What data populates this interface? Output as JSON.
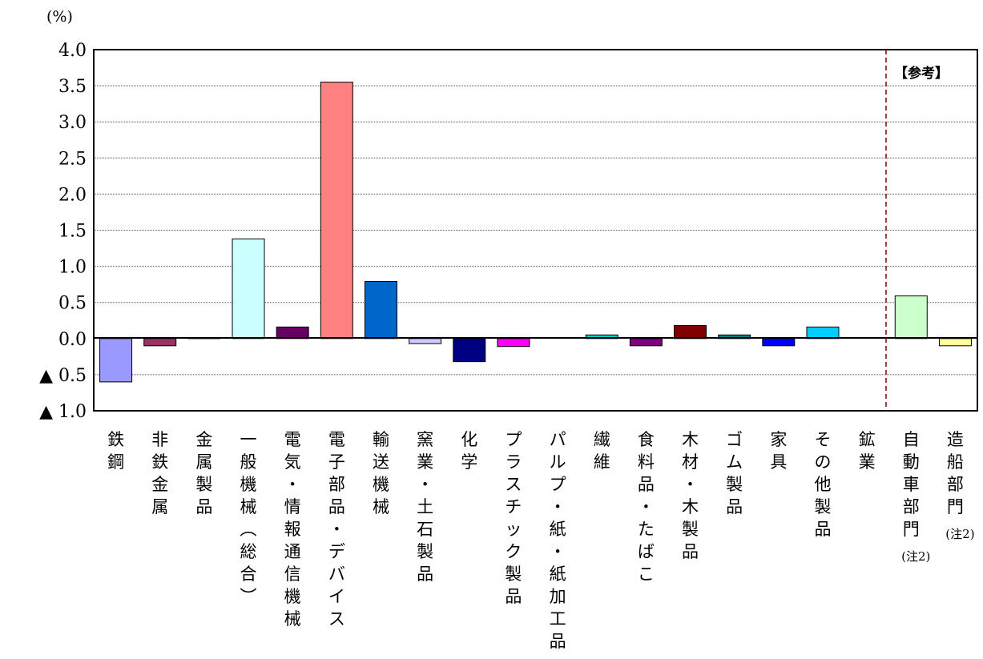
{
  "chart_data": {
    "type": "bar",
    "unit_label": "(%)",
    "ylim": [
      -1.0,
      4.0
    ],
    "yticks": [
      {
        "value": 4.0,
        "label": "4.0"
      },
      {
        "value": 3.5,
        "label": "3.5"
      },
      {
        "value": 3.0,
        "label": "3.0"
      },
      {
        "value": 2.5,
        "label": "2.5"
      },
      {
        "value": 2.0,
        "label": "2.0"
      },
      {
        "value": 1.5,
        "label": "1.5"
      },
      {
        "value": 1.0,
        "label": "1.0"
      },
      {
        "value": 0.5,
        "label": "0.5"
      },
      {
        "value": 0.0,
        "label": "0.0"
      },
      {
        "value": -0.5,
        "label": "▲ 0.5"
      },
      {
        "value": -1.0,
        "label": "▲ 1.0"
      }
    ],
    "grid": true,
    "reference_label": "【参考】",
    "categories": [
      {
        "label": "鉄鋼",
        "value": -0.6,
        "color": "#9999ff"
      },
      {
        "label": "非鉄金属",
        "value": -0.1,
        "color": "#993366"
      },
      {
        "label": "金属製品",
        "value": 0.01,
        "color": "#ffffcc"
      },
      {
        "label": "一般機械（総合）",
        "value": 1.38,
        "color": "#ccffff"
      },
      {
        "label": "電気・情報通信機械",
        "value": 0.16,
        "color": "#660066"
      },
      {
        "label": "電子部品・デバイス",
        "value": 3.55,
        "color": "#ff8080"
      },
      {
        "label": "輸送機械",
        "value": 0.79,
        "color": "#0066cc"
      },
      {
        "label": "窯業・土石製品",
        "value": -0.07,
        "color": "#ccccff"
      },
      {
        "label": "化学",
        "value": -0.32,
        "color": "#000080"
      },
      {
        "label": "プラスチック製品",
        "value": -0.11,
        "color": "#ff00ff"
      },
      {
        "label": "パルプ・紙・紙加工品",
        "value": 0.0,
        "color": "#ffff00"
      },
      {
        "label": "繊維",
        "value": 0.05,
        "color": "#00cccc"
      },
      {
        "label": "食料品・たばこ",
        "value": -0.1,
        "color": "#800080"
      },
      {
        "label": "木材・木製品",
        "value": 0.18,
        "color": "#800000"
      },
      {
        "label": "ゴム製品",
        "value": 0.05,
        "color": "#008080"
      },
      {
        "label": "家具",
        "value": -0.1,
        "color": "#0000ff"
      },
      {
        "label": "その他製品",
        "value": 0.16,
        "color": "#00ccff"
      },
      {
        "label": "鉱業",
        "value": 0.0,
        "color": "#ccffcc"
      },
      {
        "label": "自動車部門",
        "value": 0.59,
        "color": "#ccffcc",
        "note": "(注2)"
      },
      {
        "label": "造船部門",
        "value": -0.1,
        "color": "#ffff99",
        "note": "(注2)"
      }
    ]
  }
}
